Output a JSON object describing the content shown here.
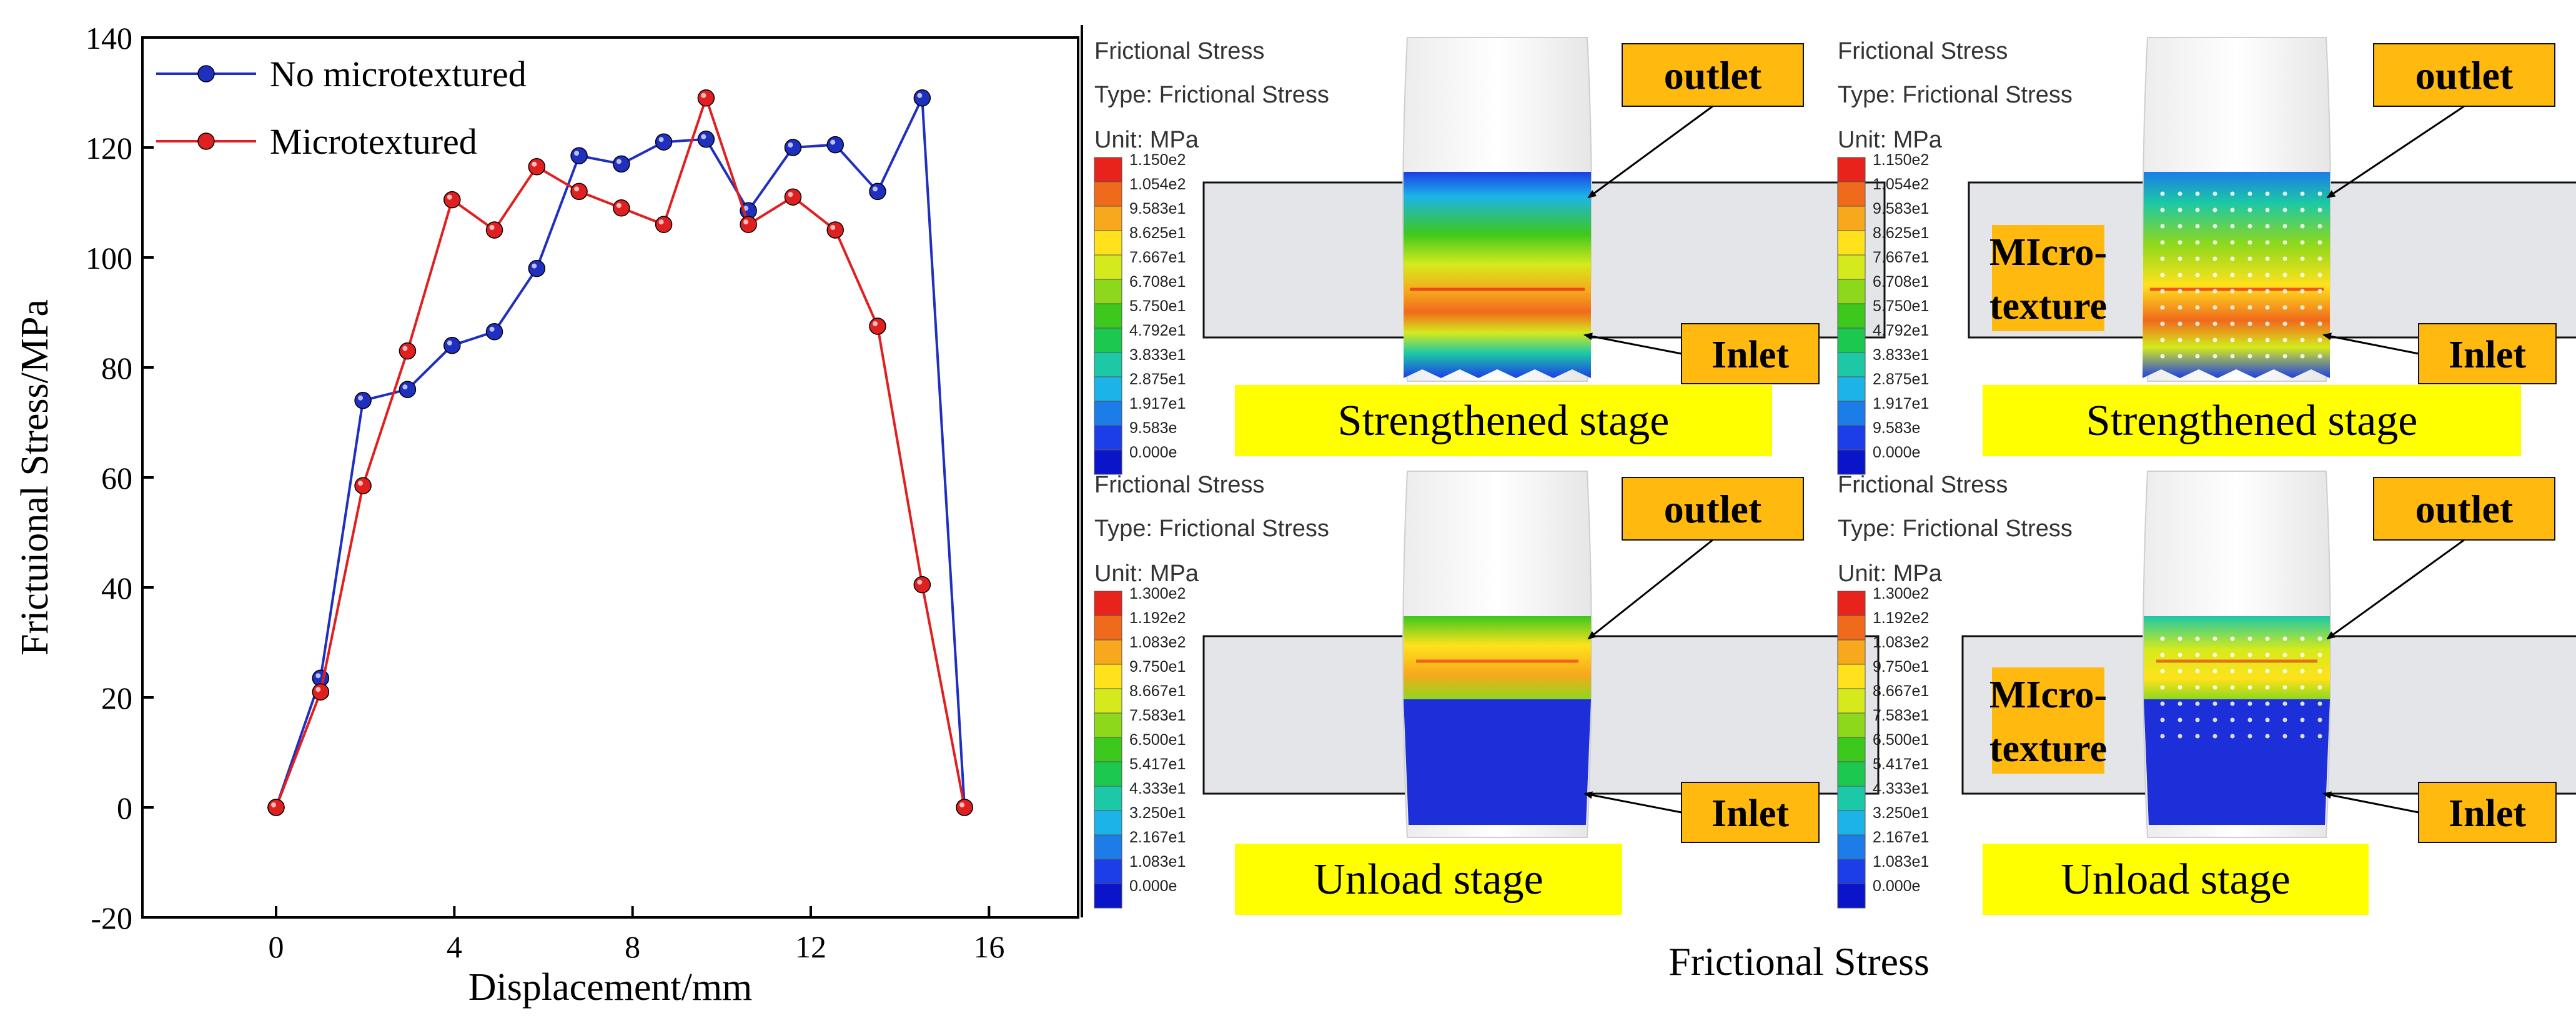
{
  "chart_data": {
    "type": "line",
    "xlabel": "Displacement/mm",
    "ylabel": "Frictuional Stress/MPa",
    "xlim": [
      -3,
      18
    ],
    "ylim": [
      -20,
      140
    ],
    "xticks": [
      0,
      4,
      8,
      12,
      16
    ],
    "yticks": [
      -20,
      0,
      20,
      40,
      60,
      80,
      100,
      120,
      140
    ],
    "series": [
      {
        "name": "No microtextured",
        "color": "#1f2fbf",
        "x": [
          0,
          1,
          1.95,
          2.95,
          3.95,
          4.9,
          5.85,
          6.8,
          7.75,
          8.7,
          9.65,
          10.6,
          11.6,
          12.55,
          13.5,
          14.5,
          15.45
        ],
        "y": [
          0,
          23.5,
          74,
          76,
          84,
          86.5,
          98,
          118.5,
          117,
          121,
          121.5,
          108.5,
          120,
          120.5,
          112,
          129,
          0
        ]
      },
      {
        "name": "Microtextured",
        "color": "#e02020",
        "x": [
          0,
          1,
          1.95,
          2.95,
          3.95,
          4.9,
          5.85,
          6.8,
          7.75,
          8.7,
          9.65,
          10.6,
          11.6,
          12.55,
          13.5,
          14.5,
          15.45
        ],
        "y": [
          0,
          21,
          58.5,
          83,
          110.5,
          105,
          116.5,
          112,
          109,
          106,
          129,
          106,
          111,
          105,
          87.5,
          40.5,
          0
        ]
      }
    ]
  },
  "sim": {
    "caption": "Frictional Stress",
    "panels": [
      {
        "header": [
          "Frictional Stress",
          "Type: Frictional Stress",
          "Unit: MPa"
        ],
        "scale": [
          "1.150e2",
          "1.054e2",
          "9.583e1",
          "8.625e1",
          "7.667e1",
          "6.708e1",
          "5.750e1",
          "4.792e1",
          "3.833e1",
          "2.875e1",
          "1.917e1",
          "9.583e",
          "0.000e"
        ],
        "outlet": "outlet",
        "inlet": "Inlet",
        "stage": "Strengthened stage",
        "micro": ""
      },
      {
        "header": [
          "Frictional Stress",
          "Type: Frictional Stress",
          "Unit: MPa"
        ],
        "scale": [
          "1.150e2",
          "1.054e2",
          "9.583e1",
          "8.625e1",
          "7.667e1",
          "6.708e1",
          "5.750e1",
          "4.792e1",
          "3.833e1",
          "2.875e1",
          "1.917e1",
          "9.583e",
          "0.000e"
        ],
        "outlet": "outlet",
        "inlet": "Inlet",
        "stage": "Strengthened stage",
        "micro": [
          "MIcro-",
          "texture"
        ]
      },
      {
        "header": [
          "Frictional Stress",
          "Type: Frictional Stress",
          "Unit: MPa"
        ],
        "scale": [
          "1.300e2",
          "1.192e2",
          "1.083e2",
          "9.750e1",
          "8.667e1",
          "7.583e1",
          "6.500e1",
          "5.417e1",
          "4.333e1",
          "3.250e1",
          "2.167e1",
          "1.083e1",
          "0.000e"
        ],
        "outlet": "outlet",
        "inlet": "Inlet",
        "stage": "Unload stage",
        "micro": ""
      },
      {
        "header": [
          "Frictional Stress",
          "Type: Frictional Stress",
          "Unit: MPa"
        ],
        "scale": [
          "1.300e2",
          "1.192e2",
          "1.083e2",
          "9.750e1",
          "8.667e1",
          "7.583e1",
          "6.500e1",
          "5.417e1",
          "4.333e1",
          "3.250e1",
          "2.167e1",
          "1.083e1",
          "0.000e"
        ],
        "outlet": "outlet",
        "inlet": "Inlet",
        "stage": "Unload stage",
        "micro": [
          "MIcro-",
          "texture"
        ]
      }
    ]
  },
  "colors": {
    "scale": [
      "#e8231c",
      "#f06a1c",
      "#f7a81c",
      "#ffe21c",
      "#d5ea1c",
      "#8ed81c",
      "#3cc81c",
      "#1cc84e",
      "#1cc8a6",
      "#1cb4e8",
      "#1c7ce8",
      "#1c3ee8",
      "#0a14c8"
    ],
    "callout": "#ffb90f",
    "stage_label": "#ffff00",
    "die": "#e3e5e8"
  }
}
